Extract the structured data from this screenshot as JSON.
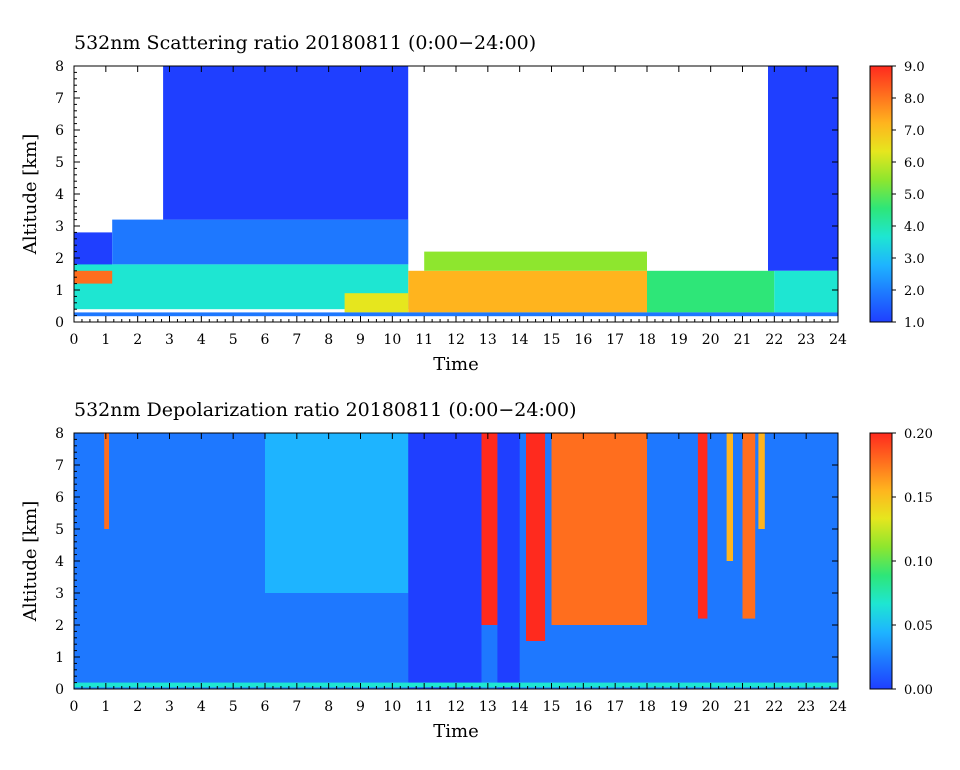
{
  "colormap": [
    "#1f3fff",
    "#1e78ff",
    "#1eb4ff",
    "#1ee6d2",
    "#2ee678",
    "#8ee62e",
    "#e6e61e",
    "#ffb41e",
    "#ff6e1e",
    "#ff2a1e"
  ],
  "chart_data": [
    {
      "type": "heatmap",
      "title": "532nm Scattering ratio  20180811 (0:00−24:00)",
      "xlabel": "Time",
      "ylabel": "Altitude [km]",
      "xlim": [
        0,
        24
      ],
      "ylim": [
        0,
        8
      ],
      "xticks": [
        "0",
        "1",
        "2",
        "3",
        "4",
        "5",
        "6",
        "7",
        "8",
        "9",
        "10",
        "11",
        "12",
        "13",
        "14",
        "15",
        "16",
        "17",
        "18",
        "19",
        "20",
        "21",
        "22",
        "23",
        "24"
      ],
      "yticks": [
        "0",
        "1",
        "2",
        "3",
        "4",
        "5",
        "6",
        "7",
        "8"
      ],
      "colorbar": {
        "min": 1.0,
        "max": 9.0,
        "labels": [
          "1.0",
          "2.0",
          "3.0",
          "4.0",
          "5.0",
          "6.0",
          "7.0",
          "8.0",
          "9.0"
        ]
      },
      "regions": [
        {
          "t0": 0.0,
          "t1": 1.2,
          "a0": 1.7,
          "a1": 2.8,
          "value": 1.5
        },
        {
          "t0": 1.2,
          "t1": 10.5,
          "a0": 1.8,
          "a1": 3.2,
          "value": 2.2
        },
        {
          "t0": 2.8,
          "t1": 10.5,
          "a0": 3.2,
          "a1": 8.0,
          "value": 1.3
        },
        {
          "t0": 0.0,
          "t1": 10.5,
          "a0": 0.4,
          "a1": 1.8,
          "value": 3.5
        },
        {
          "t0": 0.0,
          "t1": 1.2,
          "a0": 1.2,
          "a1": 1.6,
          "value": 7.8
        },
        {
          "t0": 8.5,
          "t1": 10.5,
          "a0": 0.3,
          "a1": 0.9,
          "value": 6.2
        },
        {
          "t0": 10.5,
          "t1": 18.0,
          "a0": 0.3,
          "a1": 1.6,
          "value": 6.8
        },
        {
          "t0": 18.0,
          "t1": 22.0,
          "a0": 0.3,
          "a1": 1.6,
          "value": 4.4
        },
        {
          "t0": 11.0,
          "t1": 18.0,
          "a0": 1.6,
          "a1": 2.2,
          "value": 5.0
        },
        {
          "t0": 21.8,
          "t1": 24.0,
          "a0": 1.6,
          "a1": 8.0,
          "value": 1.3
        },
        {
          "t0": 22.0,
          "t1": 24.0,
          "a0": 0.3,
          "a1": 1.6,
          "value": 4.0
        },
        {
          "t0": 0.0,
          "t1": 24.0,
          "a0": 0.18,
          "a1": 0.3,
          "value": 2.0
        }
      ]
    },
    {
      "type": "heatmap",
      "title": "532nm Depolarization ratio  20180811 (0:00−24:00)",
      "xlabel": "Time",
      "ylabel": "Altitude [km]",
      "xlim": [
        0,
        24
      ],
      "ylim": [
        0,
        8
      ],
      "xticks": [
        "0",
        "1",
        "2",
        "3",
        "4",
        "5",
        "6",
        "7",
        "8",
        "9",
        "10",
        "11",
        "12",
        "13",
        "14",
        "15",
        "16",
        "17",
        "18",
        "19",
        "20",
        "21",
        "22",
        "23",
        "24"
      ],
      "yticks": [
        "0",
        "1",
        "2",
        "3",
        "4",
        "5",
        "6",
        "7",
        "8"
      ],
      "colorbar": {
        "min": 0.0,
        "max": 0.2,
        "labels": [
          "0.00",
          "0.05",
          "0.10",
          "0.15",
          "0.20"
        ]
      },
      "regions": [
        {
          "t0": 0.0,
          "t1": 24.0,
          "a0": 0.0,
          "a1": 8.0,
          "value": 0.03
        },
        {
          "t0": 6.0,
          "t1": 10.5,
          "a0": 3.0,
          "a1": 8.0,
          "value": 0.045
        },
        {
          "t0": 10.5,
          "t1": 12.8,
          "a0": 0.0,
          "a1": 8.0,
          "value": 0.01
        },
        {
          "t0": 13.3,
          "t1": 14.0,
          "a0": 0.0,
          "a1": 8.0,
          "value": 0.008
        },
        {
          "t0": 0.0,
          "t1": 24.0,
          "a0": 0.05,
          "a1": 0.2,
          "value": 0.08
        },
        {
          "t0": 0.95,
          "t1": 1.1,
          "a0": 5.0,
          "a1": 8.0,
          "value": 0.17
        },
        {
          "t0": 12.8,
          "t1": 13.3,
          "a0": 2.0,
          "a1": 8.0,
          "value": 0.18
        },
        {
          "t0": 14.2,
          "t1": 14.8,
          "a0": 1.5,
          "a1": 8.0,
          "value": 0.19
        },
        {
          "t0": 15.0,
          "t1": 18.0,
          "a0": 2.0,
          "a1": 8.0,
          "value": 0.17
        },
        {
          "t0": 19.6,
          "t1": 19.9,
          "a0": 2.2,
          "a1": 8.0,
          "value": 0.18
        },
        {
          "t0": 20.5,
          "t1": 20.7,
          "a0": 4.0,
          "a1": 8.0,
          "value": 0.16
        },
        {
          "t0": 21.0,
          "t1": 21.4,
          "a0": 2.2,
          "a1": 8.0,
          "value": 0.17
        },
        {
          "t0": 21.5,
          "t1": 21.7,
          "a0": 5.0,
          "a1": 8.0,
          "value": 0.15
        }
      ]
    }
  ]
}
